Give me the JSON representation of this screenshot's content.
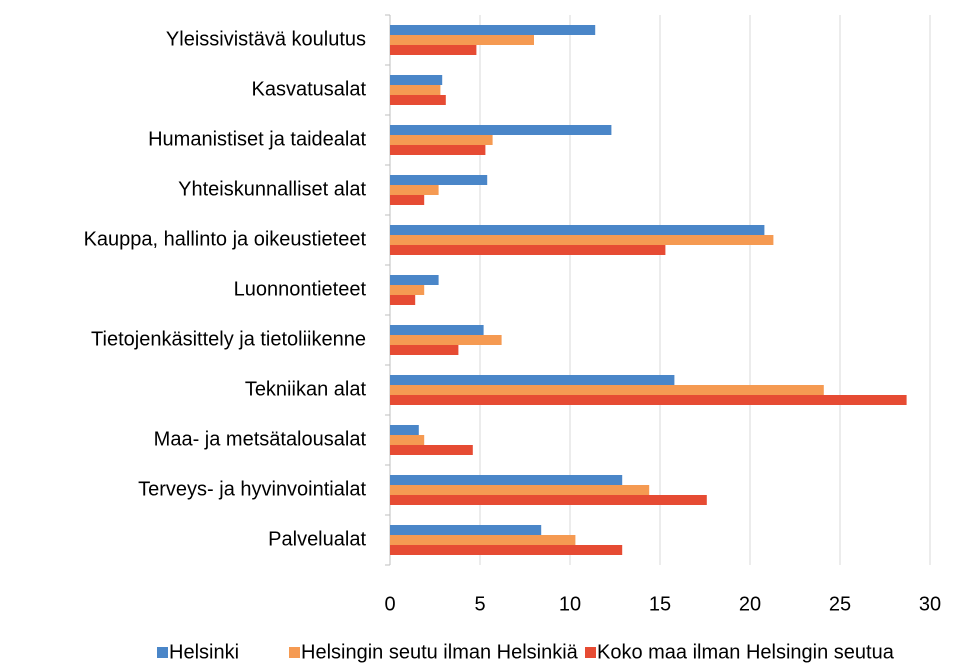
{
  "chart_data": {
    "type": "hbar",
    "categories": [
      "Yleissivistävä koulutus",
      "Kasvatusalat",
      "Humanistiset ja taidealat",
      "Yhteiskunnalliset alat",
      "Kauppa, hallinto ja oikeustieteet",
      "Luonnontieteet",
      "Tietojenkäsittely ja tietoliikenne",
      "Tekniikan alat",
      "Maa- ja metsätalousalat",
      "Terveys- ja hyvinvointialat",
      "Palvelualat"
    ],
    "series": [
      {
        "name": "Helsinki",
        "color": "#4a86c8",
        "values": [
          11.4,
          2.9,
          12.3,
          5.4,
          20.8,
          2.7,
          5.2,
          15.8,
          1.6,
          12.9,
          8.4
        ]
      },
      {
        "name": "Helsingin seutu ilman Helsinkiä",
        "color": "#f59a52",
        "values": [
          8.0,
          2.8,
          5.7,
          2.7,
          21.3,
          1.9,
          6.2,
          24.1,
          1.9,
          14.4,
          10.3
        ]
      },
      {
        "name": "Koko maa ilman Helsingin seutua",
        "color": "#e64b33",
        "values": [
          4.8,
          3.1,
          5.3,
          1.9,
          15.3,
          1.4,
          3.8,
          28.7,
          4.6,
          17.6,
          12.9
        ]
      }
    ],
    "xlim": [
      0,
      30
    ],
    "xticks": [
      0,
      5,
      10,
      15,
      20,
      25,
      30
    ],
    "grid": true,
    "legend": "bottom"
  }
}
